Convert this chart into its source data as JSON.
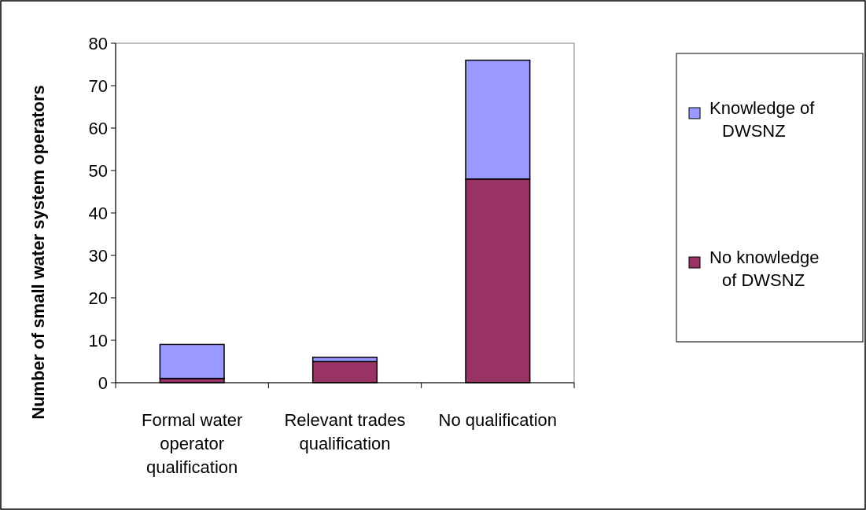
{
  "chart_data": {
    "type": "bar",
    "stacked": true,
    "ylabel": "Number of small water system operators",
    "categories": [
      "Formal water operator qualification",
      "Relevant trades qualification",
      "No qualification"
    ],
    "series": [
      {
        "name": "No knowledge of DWSNZ",
        "color": "#993366",
        "values": [
          1,
          5,
          48
        ]
      },
      {
        "name": "Knowledge of DWSNZ",
        "color": "#9999ff",
        "values": [
          8,
          1,
          28
        ]
      }
    ],
    "ylim": [
      0,
      80
    ],
    "yticks": [
      0,
      10,
      20,
      30,
      40,
      50,
      60,
      70,
      80
    ],
    "grid": false,
    "legend": "right"
  }
}
